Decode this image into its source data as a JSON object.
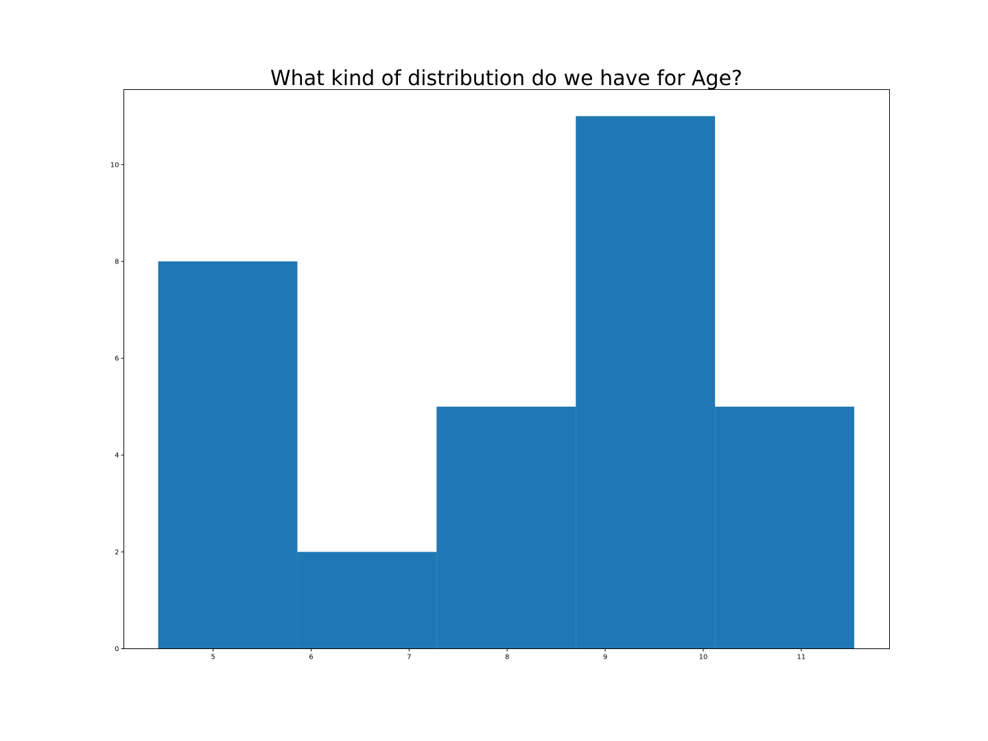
{
  "chart_data": {
    "type": "bar",
    "title": "What kind of distribution do we have for Age?",
    "xlabel": "",
    "ylabel": "",
    "bins": [
      {
        "start": 4.44,
        "end": 5.86,
        "value": 8
      },
      {
        "start": 5.86,
        "end": 7.28,
        "value": 2
      },
      {
        "start": 7.28,
        "end": 8.7,
        "value": 5
      },
      {
        "start": 8.7,
        "end": 10.12,
        "value": 11
      },
      {
        "start": 10.12,
        "end": 11.54,
        "value": 5
      }
    ],
    "xlim": [
      4.09,
      11.9
    ],
    "ylim": [
      0,
      11.55
    ],
    "xticks": [
      5,
      6,
      7,
      8,
      9,
      10,
      11
    ],
    "yticks": [
      0,
      2,
      4,
      6,
      8,
      10
    ],
    "grid": false,
    "bar_color": "#1f77b4"
  }
}
